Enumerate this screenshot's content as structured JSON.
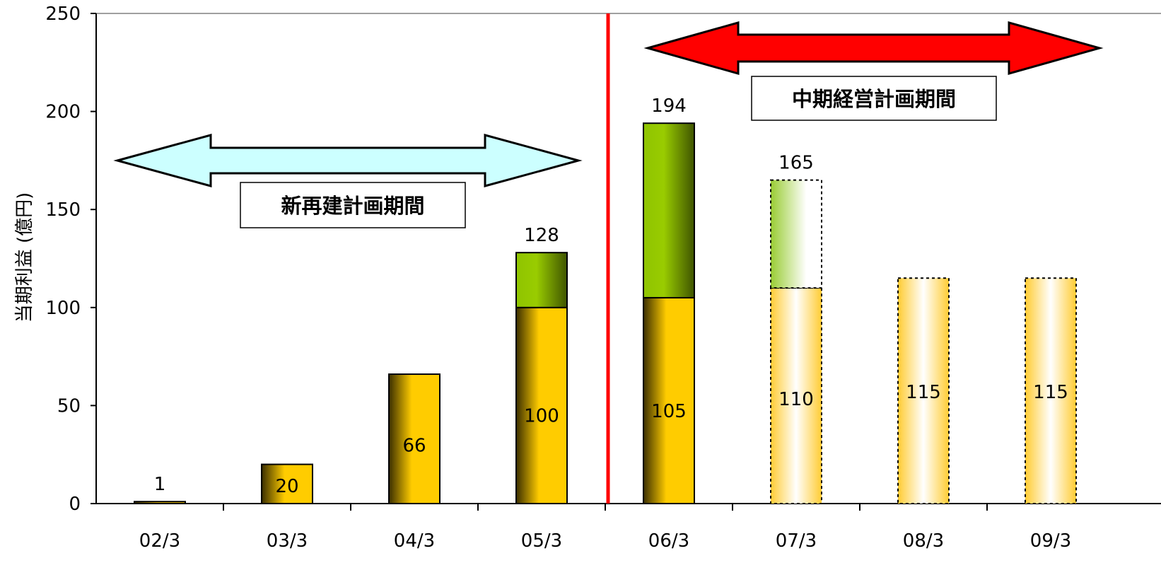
{
  "chart_data": {
    "type": "bar",
    "title": "",
    "xlabel": "",
    "ylabel": "当期利益 (億円)",
    "ylim": [
      0,
      250
    ],
    "yticks": [
      0,
      50,
      100,
      150,
      200,
      250
    ],
    "categories": [
      "02/3",
      "03/3",
      "04/3",
      "05/3",
      "06/3",
      "07/3",
      "08/3",
      "09/3"
    ],
    "bars": [
      {
        "category": "02/3",
        "base": 1,
        "top": 0,
        "total": 1,
        "base_label": "",
        "total_label": "1",
        "forecast": false
      },
      {
        "category": "03/3",
        "base": 20,
        "top": 0,
        "total": 20,
        "base_label": "20",
        "total_label": "",
        "forecast": false
      },
      {
        "category": "04/3",
        "base": 66,
        "top": 0,
        "total": 66,
        "base_label": "66",
        "total_label": "",
        "forecast": false
      },
      {
        "category": "05/3",
        "base": 100,
        "top": 28,
        "total": 128,
        "base_label": "100",
        "total_label": "128",
        "forecast": false
      },
      {
        "category": "06/3",
        "base": 105,
        "top": 89,
        "total": 194,
        "base_label": "105",
        "total_label": "194",
        "forecast": false
      },
      {
        "category": "07/3",
        "base": 110,
        "top": 55,
        "total": 165,
        "base_label": "110",
        "total_label": "165",
        "forecast": true
      },
      {
        "category": "08/3",
        "base": 115,
        "top": 0,
        "total": 115,
        "base_label": "115",
        "total_label": "",
        "forecast": true
      },
      {
        "category": "09/3",
        "base": 115,
        "top": 0,
        "total": 115,
        "base_label": "115",
        "total_label": "",
        "forecast": true
      }
    ],
    "divider_between": [
      "05/3",
      "06/3"
    ],
    "periods": [
      {
        "label": "新再建計画期間",
        "from": "02/3",
        "to": "05/3",
        "color": "#ccffff"
      },
      {
        "label": "中期経営計画期間",
        "from": "06/3",
        "to": "09/3",
        "color": "#ff0000"
      }
    ],
    "colors": {
      "base": "#ffcc00",
      "top": "#99cc00",
      "divider": "#ff0000",
      "axis": "#000000",
      "gridline": "#808080"
    },
    "grid": false,
    "legend": "none"
  }
}
